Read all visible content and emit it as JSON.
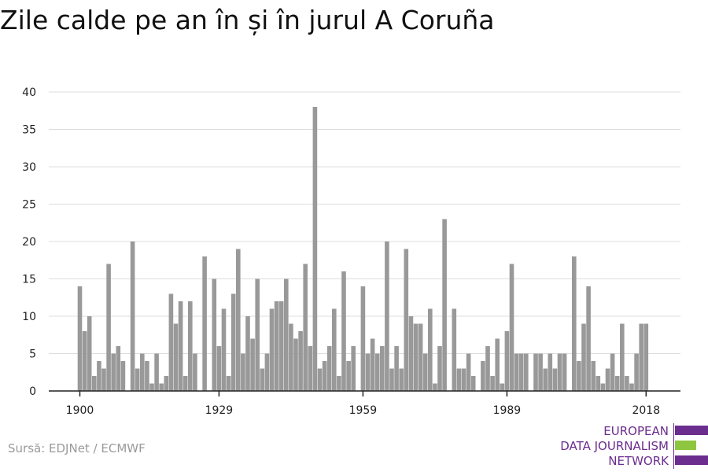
{
  "title": "Zile calde pe an în și în jurul A Coruña",
  "source": "Sursă: EDJNet / ECMWF",
  "logo": {
    "line1": "EUROPEAN",
    "line2": "DATA JOURNALISM",
    "line3": "NETWORK",
    "colors": [
      "#6b2d8e",
      "#8ec63f",
      "#6b2d8e"
    ]
  },
  "chart_data": {
    "type": "bar",
    "title": "Zile calde pe an în și în jurul A Coruña",
    "xlabel": "",
    "ylabel": "",
    "start_year": 1900,
    "x_ticks": [
      1900,
      1929,
      1959,
      1989,
      2018
    ],
    "y_ticks": [
      0,
      5,
      10,
      15,
      20,
      25,
      30,
      35,
      40
    ],
    "ylim": [
      0,
      40
    ],
    "grid": true,
    "bar_color": "#999999",
    "values": [
      14,
      8,
      10,
      2,
      4,
      3,
      17,
      5,
      6,
      4,
      0,
      20,
      3,
      5,
      4,
      1,
      5,
      1,
      2,
      13,
      9,
      12,
      2,
      12,
      5,
      0,
      18,
      0,
      15,
      6,
      11,
      2,
      13,
      19,
      5,
      10,
      7,
      15,
      3,
      5,
      11,
      12,
      12,
      15,
      9,
      7,
      8,
      17,
      6,
      38,
      3,
      4,
      6,
      11,
      2,
      16,
      4,
      6,
      0,
      14,
      5,
      7,
      5,
      6,
      20,
      3,
      6,
      3,
      19,
      10,
      9,
      9,
      5,
      11,
      1,
      6,
      23,
      0,
      11,
      3,
      3,
      5,
      2,
      0,
      4,
      6,
      2,
      7,
      1,
      8,
      17,
      5,
      5,
      5,
      0,
      5,
      5,
      3,
      5,
      3,
      5,
      5,
      0,
      18,
      4,
      9,
      14,
      4,
      2,
      1,
      3,
      5,
      2,
      9,
      2,
      1,
      5,
      9,
      9
    ]
  }
}
